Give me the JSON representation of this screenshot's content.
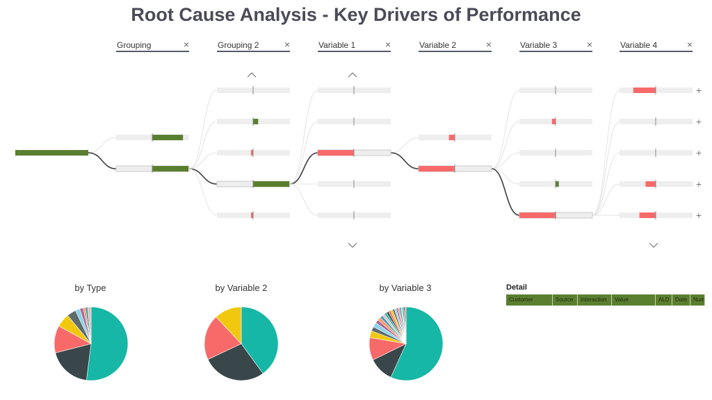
{
  "title": "Root Cause Analysis - Key Drivers of Performance",
  "colors": {
    "positive": "#5a7f2f",
    "negative": "#f86a6a",
    "track": "#eeeeee",
    "link": "#3c3c3c",
    "pie": [
      "#16b7a6",
      "#39474a",
      "#f86a6a",
      "#f2c80f",
      "#5f6b6d",
      "#8ad4eb",
      "#a66999",
      "#fe9666",
      "#3599b8",
      "#dfbfbf"
    ]
  },
  "columns": [
    {
      "label": "Grouping",
      "close": "×"
    },
    {
      "label": "Grouping 2",
      "close": "×"
    },
    {
      "label": "Variable 1",
      "close": "×"
    },
    {
      "label": "Variable 2",
      "close": "×"
    },
    {
      "label": "Variable 3",
      "close": "×"
    },
    {
      "label": "Variable 4",
      "close": "×"
    }
  ],
  "nav": {
    "up": "︿",
    "down": "﹀",
    "expand": "+"
  },
  "tree": {
    "root": {
      "value": 1.0
    },
    "levels": [
      [
        {
          "value": 0.85
        },
        {
          "value": 1.0,
          "selected": true
        }
      ],
      [
        {
          "value": 0.0
        },
        {
          "value": 0.14
        },
        {
          "value": -0.03
        },
        {
          "value": 1.0,
          "selected": true
        },
        {
          "value": -0.02
        }
      ],
      [
        {
          "value": 0.0
        },
        {
          "value": 0.0
        },
        {
          "value": -1.0,
          "selected": true
        },
        {
          "value": 0.0
        },
        {
          "value": 0.0
        }
      ],
      [
        {
          "value": -0.16
        },
        {
          "value": -1.0,
          "selected": true
        }
      ],
      [
        {
          "value": 0.0
        },
        {
          "value": -0.1
        },
        {
          "value": 0.0
        },
        {
          "value": 0.09
        },
        {
          "value": -1.0,
          "selected": true
        }
      ],
      [
        {
          "value": -0.62
        },
        {
          "value": 0.0
        },
        {
          "value": 0.0
        },
        {
          "value": -0.28
        },
        {
          "value": -0.45
        }
      ]
    ]
  },
  "pies": [
    {
      "title": "by Type",
      "values": [
        52,
        19,
        12,
        6,
        4,
        2,
        1.5,
        1,
        1,
        1.5
      ]
    },
    {
      "title": "by Variable 2",
      "values": [
        40,
        28,
        20,
        12
      ]
    },
    {
      "title": "by Variable 3",
      "values": [
        57,
        11,
        10,
        3,
        2,
        2,
        1.5,
        1.5,
        1.2,
        1.2,
        1,
        1,
        1,
        0.9,
        0.9,
        0.8,
        0.8,
        0.7,
        0.7,
        0.6,
        0.6,
        0.5,
        0.5
      ]
    }
  ],
  "detail": {
    "title": "Detail",
    "columns": [
      "Customer",
      "Source",
      "Interaction",
      "Value",
      "ALD",
      "Date",
      "Num"
    ]
  }
}
